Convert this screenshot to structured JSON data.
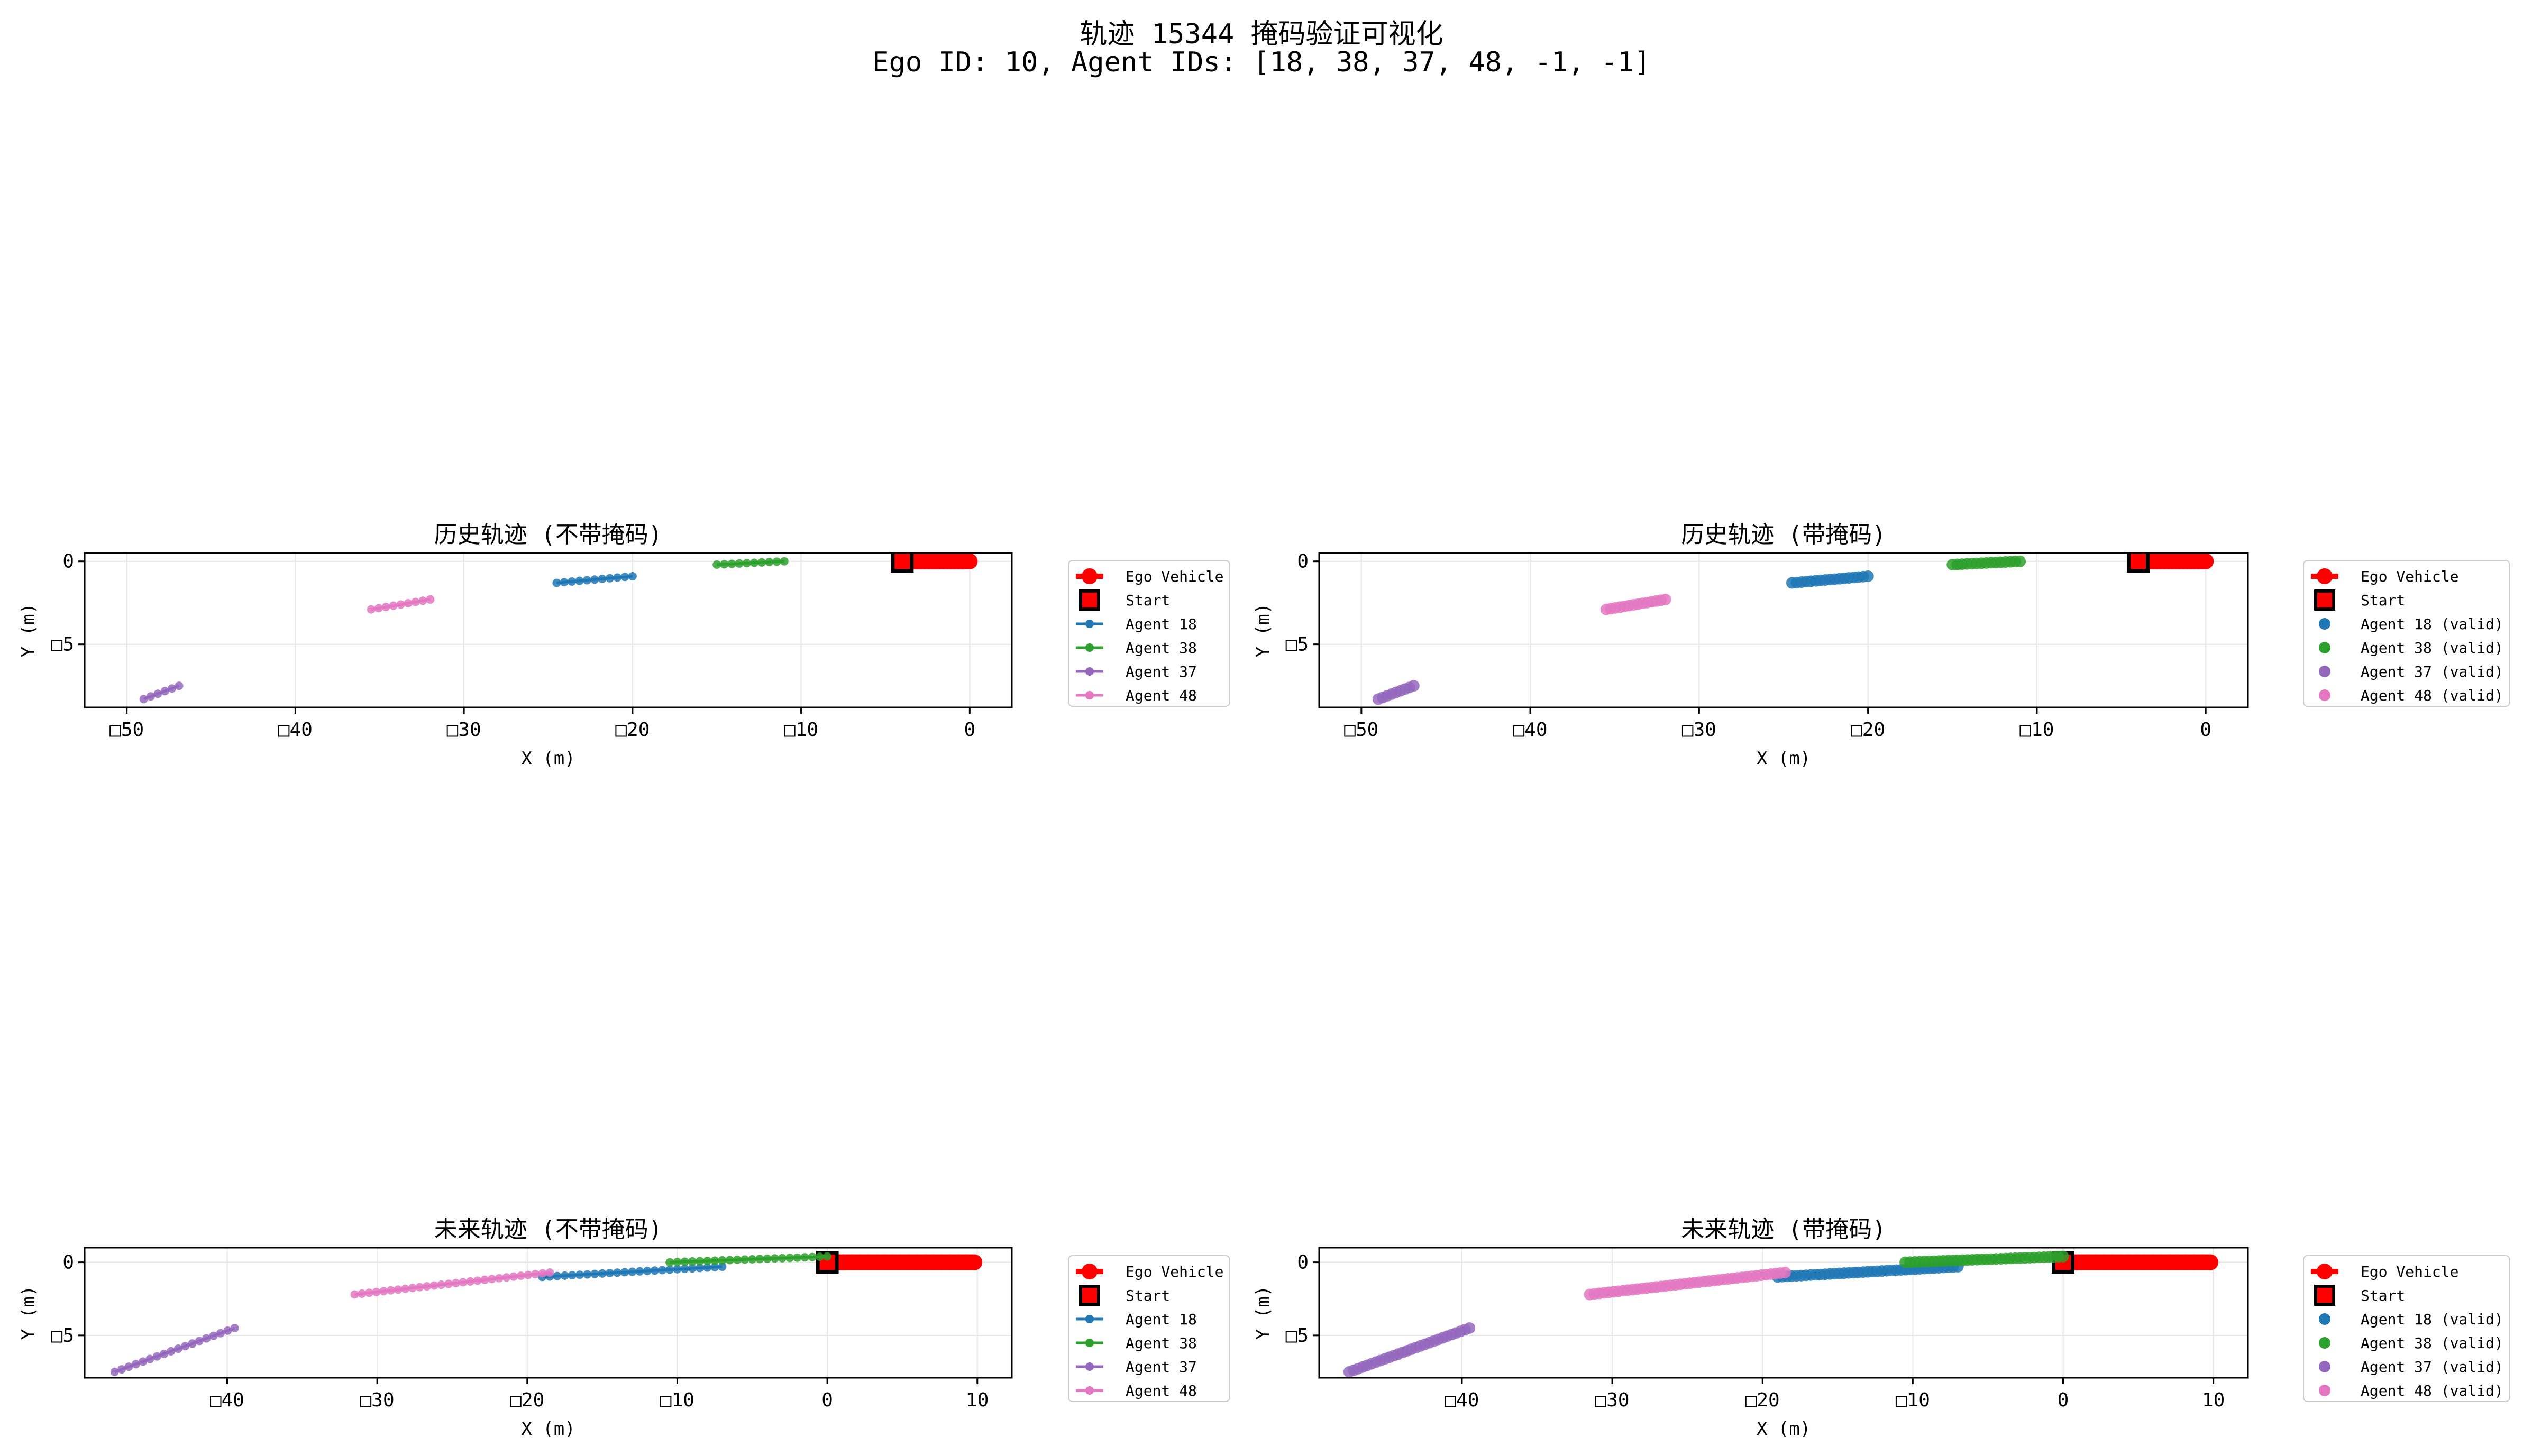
{
  "figure": {
    "title_line1": "轨迹 15344 掩码验证可视化",
    "title_line2": "Ego ID: 10, Agent IDs: [18, 38, 37, 48, -1, -1]"
  },
  "colors": {
    "ego": "#ff0000",
    "agent_18": "#1f77b4",
    "agent_38": "#2ca02c",
    "agent_37": "#9467bd",
    "agent_48": "#e377c2",
    "grid": "#e6e6e6"
  },
  "chart_data": [
    {
      "type": "line",
      "title": "历史轨迹 (不带掩码)",
      "xlabel": "X (m)",
      "ylabel": "Y (m)",
      "xlim": [
        -52.5,
        2.5
      ],
      "ylim": [
        -8.8,
        0.5
      ],
      "xticks": [
        -50,
        -40,
        -30,
        -20,
        -10,
        0
      ],
      "xtick_labels": [
        "□50",
        "□40",
        "□30",
        "□20",
        "□10",
        "0"
      ],
      "yticks": [
        0,
        -5
      ],
      "ytick_labels": [
        "0",
        "□5"
      ],
      "grid": true,
      "legend": "outside-right",
      "series": [
        {
          "name": "Ego Vehicle",
          "key": "ego",
          "x": [
            -4.0,
            0.0
          ],
          "y": [
            0.0,
            0.0
          ],
          "kind": "ego"
        },
        {
          "name": "Start",
          "key": "start",
          "x": [
            -4.0
          ],
          "y": [
            0.0
          ],
          "kind": "start"
        },
        {
          "name": "Agent 18",
          "key": "agent_18",
          "x": [
            -24.5,
            -20.0
          ],
          "y": [
            -1.3,
            -0.9
          ],
          "kind": "agent"
        },
        {
          "name": "Agent 38",
          "key": "agent_38",
          "x": [
            -15.0,
            -11.0
          ],
          "y": [
            -0.2,
            0.0
          ],
          "kind": "agent"
        },
        {
          "name": "Agent 37",
          "key": "agent_37",
          "x": [
            -49.0,
            -46.9
          ],
          "y": [
            -8.3,
            -7.5
          ],
          "kind": "agent"
        },
        {
          "name": "Agent 48",
          "key": "agent_48",
          "x": [
            -35.5,
            -32.0
          ],
          "y": [
            -2.9,
            -2.3
          ],
          "kind": "agent"
        }
      ]
    },
    {
      "type": "line",
      "title": "历史轨迹 (带掩码)",
      "xlabel": "X (m)",
      "ylabel": "Y (m)",
      "xlim": [
        -52.5,
        2.5
      ],
      "ylim": [
        -8.8,
        0.5
      ],
      "xticks": [
        -50,
        -40,
        -30,
        -20,
        -10,
        0
      ],
      "xtick_labels": [
        "□50",
        "□40",
        "□30",
        "□20",
        "□10",
        "0"
      ],
      "yticks": [
        0,
        -5
      ],
      "ytick_labels": [
        "0",
        "□5"
      ],
      "grid": true,
      "legend": "outside-right",
      "series": [
        {
          "name": "Ego Vehicle",
          "key": "ego",
          "x": [
            -4.0,
            0.0
          ],
          "y": [
            0.0,
            0.0
          ],
          "kind": "ego"
        },
        {
          "name": "Start",
          "key": "start",
          "x": [
            -4.0
          ],
          "y": [
            0.0
          ],
          "kind": "start"
        },
        {
          "name": "Agent 18 (valid)",
          "key": "agent_18",
          "x": [
            -24.5,
            -20.0
          ],
          "y": [
            -1.3,
            -0.9
          ],
          "kind": "agent_valid"
        },
        {
          "name": "Agent 38 (valid)",
          "key": "agent_38",
          "x": [
            -15.0,
            -11.0
          ],
          "y": [
            -0.2,
            0.0
          ],
          "kind": "agent_valid"
        },
        {
          "name": "Agent 37 (valid)",
          "key": "agent_37",
          "x": [
            -49.0,
            -46.9
          ],
          "y": [
            -8.3,
            -7.5
          ],
          "kind": "agent_valid"
        },
        {
          "name": "Agent 48 (valid)",
          "key": "agent_48",
          "x": [
            -35.5,
            -32.0
          ],
          "y": [
            -2.9,
            -2.3
          ],
          "kind": "agent_valid"
        }
      ]
    },
    {
      "type": "line",
      "title": "未来轨迹 (不带掩码)",
      "xlabel": "X (m)",
      "ylabel": "Y (m)",
      "xlim": [
        -49.5,
        12.3
      ],
      "ylim": [
        -7.9,
        1.0
      ],
      "xticks": [
        -40,
        -30,
        -20,
        -10,
        0,
        10
      ],
      "xtick_labels": [
        "□40",
        "□30",
        "□20",
        "□10",
        "0",
        "10"
      ],
      "yticks": [
        0,
        -5
      ],
      "ytick_labels": [
        "0",
        "□5"
      ],
      "grid": true,
      "legend": "outside-right",
      "series": [
        {
          "name": "Ego Vehicle",
          "key": "ego",
          "x": [
            0.0,
            9.8
          ],
          "y": [
            0.0,
            0.0
          ],
          "kind": "ego"
        },
        {
          "name": "Start",
          "key": "start",
          "x": [
            0.0
          ],
          "y": [
            0.0
          ],
          "kind": "start"
        },
        {
          "name": "Agent 18",
          "key": "agent_18",
          "x": [
            -19.0,
            -7.0
          ],
          "y": [
            -1.0,
            -0.3
          ],
          "kind": "agent"
        },
        {
          "name": "Agent 38",
          "key": "agent_38",
          "x": [
            -10.5,
            0.0
          ],
          "y": [
            0.0,
            0.4
          ],
          "kind": "agent"
        },
        {
          "name": "Agent 37",
          "key": "agent_37",
          "x": [
            -47.5,
            -39.5
          ],
          "y": [
            -7.5,
            -4.5
          ],
          "kind": "agent"
        },
        {
          "name": "Agent 48",
          "key": "agent_48",
          "x": [
            -31.5,
            -18.5
          ],
          "y": [
            -2.2,
            -0.7
          ],
          "kind": "agent"
        }
      ]
    },
    {
      "type": "line",
      "title": "未来轨迹 (带掩码)",
      "xlabel": "X (m)",
      "ylabel": "Y (m)",
      "xlim": [
        -49.5,
        12.3
      ],
      "ylim": [
        -7.9,
        1.0
      ],
      "xticks": [
        -40,
        -30,
        -20,
        -10,
        0,
        10
      ],
      "xtick_labels": [
        "□40",
        "□30",
        "□20",
        "□10",
        "0",
        "10"
      ],
      "yticks": [
        0,
        -5
      ],
      "ytick_labels": [
        "0",
        "□5"
      ],
      "grid": true,
      "legend": "outside-right",
      "series": [
        {
          "name": "Ego Vehicle",
          "key": "ego",
          "x": [
            0.0,
            9.8
          ],
          "y": [
            0.0,
            0.0
          ],
          "kind": "ego"
        },
        {
          "name": "Start",
          "key": "start",
          "x": [
            0.0
          ],
          "y": [
            0.0
          ],
          "kind": "start"
        },
        {
          "name": "Agent 18 (valid)",
          "key": "agent_18",
          "x": [
            -19.0,
            -7.0
          ],
          "y": [
            -1.0,
            -0.3
          ],
          "kind": "agent_valid"
        },
        {
          "name": "Agent 38 (valid)",
          "key": "agent_38",
          "x": [
            -10.5,
            0.0
          ],
          "y": [
            0.0,
            0.4
          ],
          "kind": "agent_valid"
        },
        {
          "name": "Agent 37 (valid)",
          "key": "agent_37",
          "x": [
            -47.5,
            -39.5
          ],
          "y": [
            -7.5,
            -4.5
          ],
          "kind": "agent_valid"
        },
        {
          "name": "Agent 48 (valid)",
          "key": "agent_48",
          "x": [
            -31.5,
            -18.5
          ],
          "y": [
            -2.2,
            -0.7
          ],
          "kind": "agent_valid"
        }
      ]
    }
  ]
}
